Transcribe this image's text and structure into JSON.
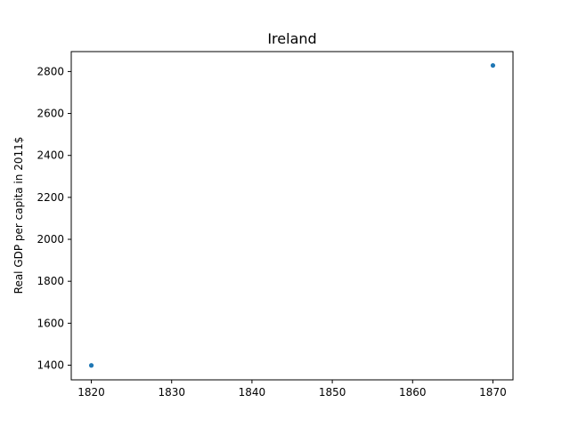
{
  "chart_data": {
    "type": "scatter",
    "title": "Ireland",
    "xlabel": "",
    "ylabel": "Real GDP per capita in 2011$",
    "x": [
      1820,
      1870
    ],
    "y": [
      1399,
      2829
    ],
    "xlim": [
      1817.5,
      1872.5
    ],
    "ylim": [
      1330,
      2895
    ],
    "xticks": [
      1820,
      1830,
      1840,
      1850,
      1860,
      1870
    ],
    "yticks": [
      1400,
      1600,
      1800,
      2000,
      2200,
      2400,
      2600,
      2800
    ],
    "grid": false,
    "marker_color": "#1f77b4"
  }
}
